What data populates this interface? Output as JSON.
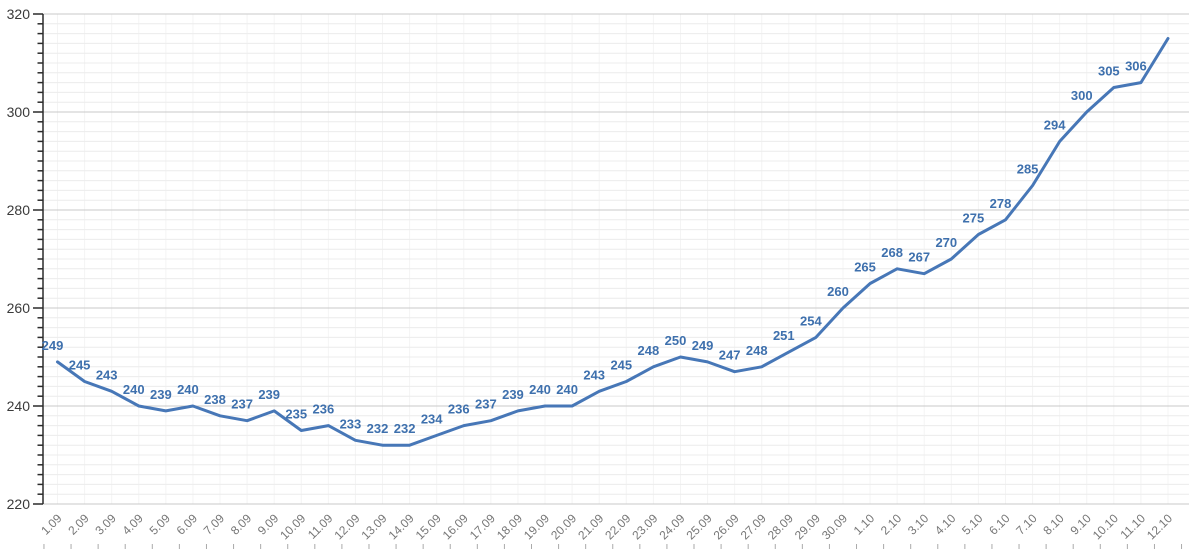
{
  "page": {
    "background": "#ffffff"
  },
  "chart_data": {
    "type": "line",
    "title": "",
    "xlabel": "",
    "ylabel": "",
    "legend": "none",
    "grid": true,
    "categories": [
      "1.09",
      "2.09",
      "3.09",
      "4.09",
      "5.09",
      "6.09",
      "7.09",
      "8.09",
      "9.09",
      "10.09",
      "11.09",
      "12.09",
      "13.09",
      "14.09",
      "15.09",
      "16.09",
      "17.09",
      "18.09",
      "19.09",
      "20.09",
      "21.09",
      "22.09",
      "23.09",
      "24.09",
      "25.09",
      "26.09",
      "27.09",
      "28.09",
      "29.09",
      "30.09",
      "1.10",
      "2.10",
      "3.10",
      "4.10",
      "5.10",
      "6.10",
      "7.10",
      "8.10",
      "9.10",
      "10.10",
      "11.10",
      "12.10"
    ],
    "series": [
      {
        "name": "value",
        "values": [
          249,
          245,
          243,
          240,
          239,
          240,
          238,
          237,
          239,
          235,
          236,
          233,
          232,
          232,
          234,
          236,
          237,
          239,
          240,
          240,
          243,
          245,
          248,
          250,
          249,
          247,
          248,
          251,
          254,
          260,
          265,
          268,
          267,
          270,
          275,
          278,
          285,
          294,
          300,
          305,
          306,
          315
        ]
      }
    ],
    "data_labels": [
      249,
      245,
      243,
      240,
      239,
      240,
      238,
      237,
      239,
      235,
      236,
      233,
      232,
      232,
      234,
      236,
      237,
      239,
      240,
      240,
      243,
      245,
      248,
      250,
      249,
      247,
      248,
      251,
      254,
      260,
      265,
      268,
      267,
      270,
      275,
      278,
      285,
      294,
      300,
      305,
      306,
      null
    ],
    "y_axis": {
      "min": 220,
      "max": 320,
      "major_step": 20,
      "minor_step": 2,
      "ticks": [
        320,
        300,
        280,
        260,
        240,
        220
      ]
    },
    "x_axis": {
      "label_rotation_deg": -45
    },
    "colors": {
      "line": "#4777b7",
      "data_label": "#3e70ad",
      "y_tick_label": "#3a3a3a",
      "x_tick_label": "#777777",
      "axis": "#2b2b2b",
      "major_grid": "#c9c9c9",
      "minor_grid": "#ececec",
      "vertical_grid": "#f4f4f4",
      "boundary_tick": "#aaaaaa"
    }
  }
}
